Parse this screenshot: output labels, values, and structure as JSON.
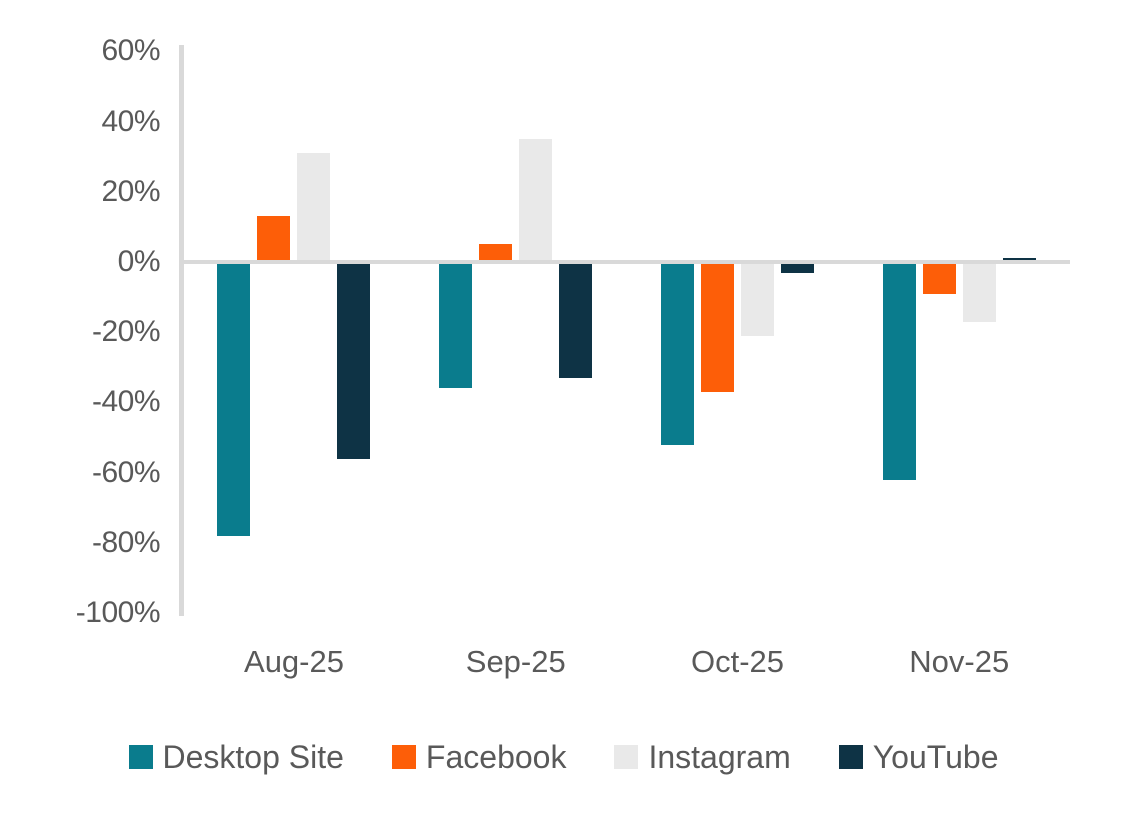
{
  "chart_data": {
    "type": "bar",
    "title": "",
    "xlabel": "",
    "ylabel": "",
    "categories": [
      "Aug-25",
      "Sep-25",
      "Oct-25",
      "Nov-25"
    ],
    "series": [
      {
        "name": "Desktop Site",
        "color": "#0A7C8D",
        "values": [
          -78,
          -36,
          -52,
          -62
        ]
      },
      {
        "name": "Facebook",
        "color": "#FD5E08",
        "values": [
          13,
          5,
          -37,
          -9
        ]
      },
      {
        "name": "Instagram",
        "color": "#E9E9E9",
        "values": [
          31,
          35,
          -21,
          -17
        ]
      },
      {
        "name": "YouTube",
        "color": "#0E3345",
        "values": [
          -56,
          -33,
          -3,
          1
        ]
      }
    ],
    "ylim": [
      -100,
      60
    ],
    "ytick_step": 20,
    "ytick_suffix": "%",
    "ytick_labels": [
      "60%",
      "40%",
      "20%",
      "0%",
      "-20%",
      "-40%",
      "-60%",
      "-80%",
      "-100%"
    ],
    "grid": false,
    "legend_position": "bottom",
    "axis_color": "#D9D9D9",
    "label_color": "#595959"
  }
}
